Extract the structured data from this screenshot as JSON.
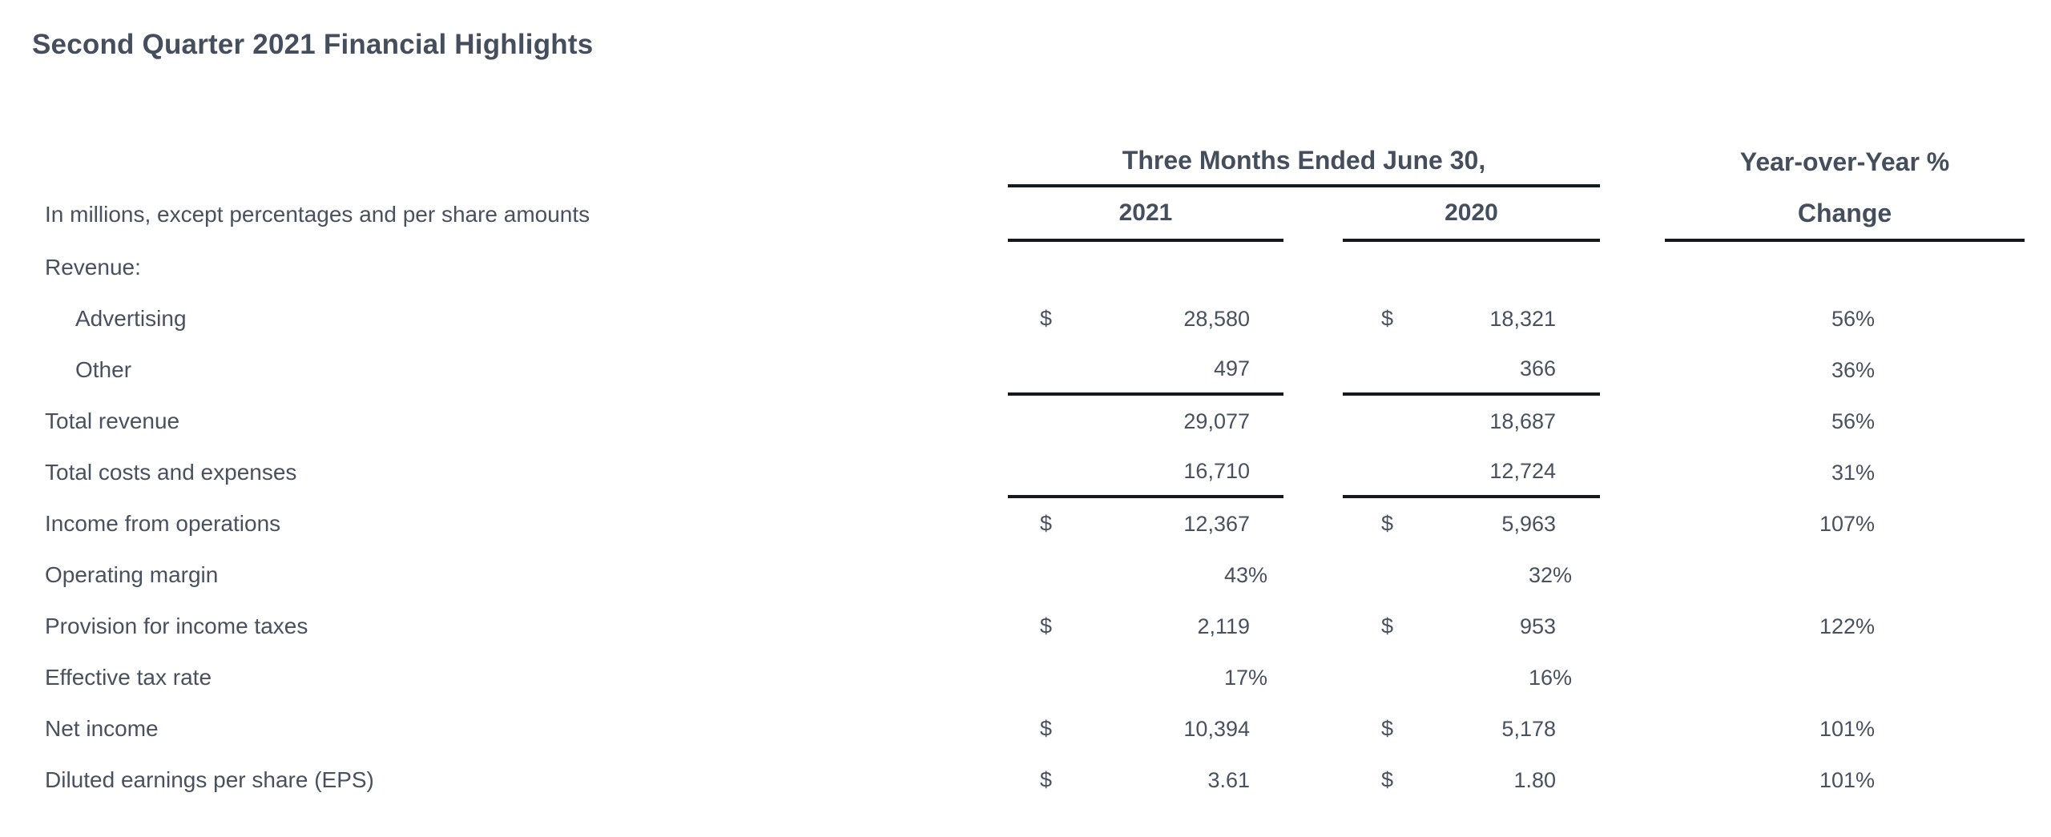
{
  "title": "Second Quarter 2021 Financial Highlights",
  "colors": {
    "background": "#ffffff",
    "text": "#485160",
    "title_text": "#454e5d",
    "rule": "#15181d"
  },
  "table": {
    "units_note": "In millions, except percentages and per share amounts",
    "period_header": "Three Months Ended June 30,",
    "yoy_header_line1": "Year-over-Year %",
    "yoy_header_line2": "Change",
    "year_col_1": "2021",
    "year_col_2": "2020",
    "rows": [
      {
        "label": "Revenue:",
        "cur2021": "",
        "v2021": "",
        "cur2020": "",
        "v2020": "",
        "yoy": ""
      },
      {
        "label": "Advertising",
        "cur2021": "$",
        "v2021": "28,580",
        "cur2020": "$",
        "v2020": "18,321",
        "yoy": "56%"
      },
      {
        "label": "Other",
        "cur2021": "",
        "v2021": "497",
        "cur2020": "",
        "v2020": "366",
        "yoy": "36%"
      },
      {
        "label": "Total revenue",
        "cur2021": "",
        "v2021": "29,077",
        "cur2020": "",
        "v2020": "18,687",
        "yoy": "56%"
      },
      {
        "label": "Total costs and expenses",
        "cur2021": "",
        "v2021": "16,710",
        "cur2020": "",
        "v2020": "12,724",
        "yoy": "31%"
      },
      {
        "label": "Income from operations",
        "cur2021": "$",
        "v2021": "12,367",
        "cur2020": "$",
        "v2020": "5,963",
        "yoy": "107%"
      },
      {
        "label": "Operating margin",
        "cur2021": "",
        "v2021": "43%",
        "cur2020": "",
        "v2020": "32%",
        "yoy": ""
      },
      {
        "label": "Provision for income taxes",
        "cur2021": "$",
        "v2021": "2,119",
        "cur2020": "$",
        "v2020": "953",
        "yoy": "122%"
      },
      {
        "label": "Effective tax rate",
        "cur2021": "",
        "v2021": "17%",
        "cur2020": "",
        "v2020": "16%",
        "yoy": ""
      },
      {
        "label": "Net income",
        "cur2021": "$",
        "v2021": "10,394",
        "cur2020": "$",
        "v2020": "5,178",
        "yoy": "101%"
      },
      {
        "label": "Diluted earnings per share (EPS)",
        "cur2021": "$",
        "v2021": "3.61",
        "cur2020": "$",
        "v2020": "1.80",
        "yoy": "101%"
      }
    ]
  }
}
